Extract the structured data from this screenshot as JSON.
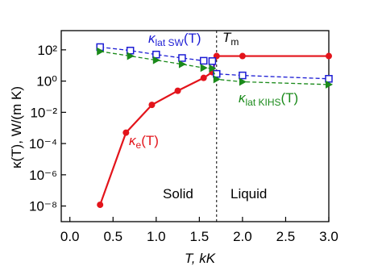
{
  "chart_data": {
    "type": "line",
    "xlabel": "T, kK",
    "ylabel": "κ(T), W/(m K)",
    "xlim": [
      -0.1,
      3.0
    ],
    "xticks": [
      {
        "value": 0,
        "label": "0.0"
      },
      {
        "value": 0.5,
        "label": "0.5"
      },
      {
        "value": 1,
        "label": "1.0"
      },
      {
        "value": 1.5,
        "label": "1.5"
      },
      {
        "value": 2,
        "label": "2.0"
      },
      {
        "value": 2.5,
        "label": "2.5"
      },
      {
        "value": 3,
        "label": "3.0"
      }
    ],
    "ylim": [
      1e-09,
      1700
    ],
    "log_y": true,
    "yticks": [
      {
        "value": 1e-08,
        "label": "10⁻⁸"
      },
      {
        "value": 1e-06,
        "label": "10⁻⁶"
      },
      {
        "value": 0.0001,
        "label": "10⁻⁴"
      },
      {
        "value": 0.01,
        "label": "10⁻²"
      },
      {
        "value": 1,
        "label": "10⁰"
      },
      {
        "value": 100,
        "label": "10²"
      }
    ],
    "vline": 1.7,
    "series": [
      {
        "name": "κe(T)",
        "color": "#e3141b",
        "marker": "circle",
        "dash": false,
        "x": [
          0.35,
          0.65,
          0.95,
          1.25,
          1.55,
          1.65,
          1.7,
          2.0,
          3.0
        ],
        "values": [
          1.2e-08,
          0.0005,
          0.03,
          0.24,
          1.6,
          3.7,
          40,
          40,
          40
        ]
      },
      {
        "name": "κlat SW(T)",
        "color": "#1c1cd4",
        "marker": "square",
        "dash": true,
        "x": [
          0.35,
          0.7,
          1.0,
          1.3,
          1.55,
          1.65,
          1.7,
          2.0,
          3.0
        ],
        "values": [
          150,
          90,
          50,
          30,
          20,
          19,
          2.9,
          2.3,
          1.4
        ]
      },
      {
        "name": "κlat KIHS(T)",
        "color": "#1a8a1a",
        "marker": "triangle",
        "dash": true,
        "x": [
          0.35,
          0.7,
          1.0,
          1.3,
          1.55,
          1.65,
          1.7,
          2.0,
          3.0
        ],
        "values": [
          80,
          40,
          22,
          12,
          7,
          6.5,
          1.3,
          0.9,
          0.6
        ]
      }
    ],
    "annotations": [
      {
        "symbol": "κ",
        "sub": "lat SW",
        "arg": "(T)",
        "color": "#1c1cd4"
      },
      {
        "symbol": "T",
        "sub": "m",
        "arg": "",
        "color": "#000000"
      },
      {
        "symbol": "κ",
        "sub": "lat KIHS",
        "arg": "(T)",
        "color": "#1a8a1a"
      },
      {
        "symbol": "κ",
        "sub": "e",
        "arg": "(T)",
        "color": "#e3141b"
      },
      {
        "symbol": "Solid",
        "sub": "",
        "arg": "",
        "color": "#000000"
      },
      {
        "symbol": "Liquid",
        "sub": "",
        "arg": "",
        "color": "#000000"
      }
    ]
  }
}
